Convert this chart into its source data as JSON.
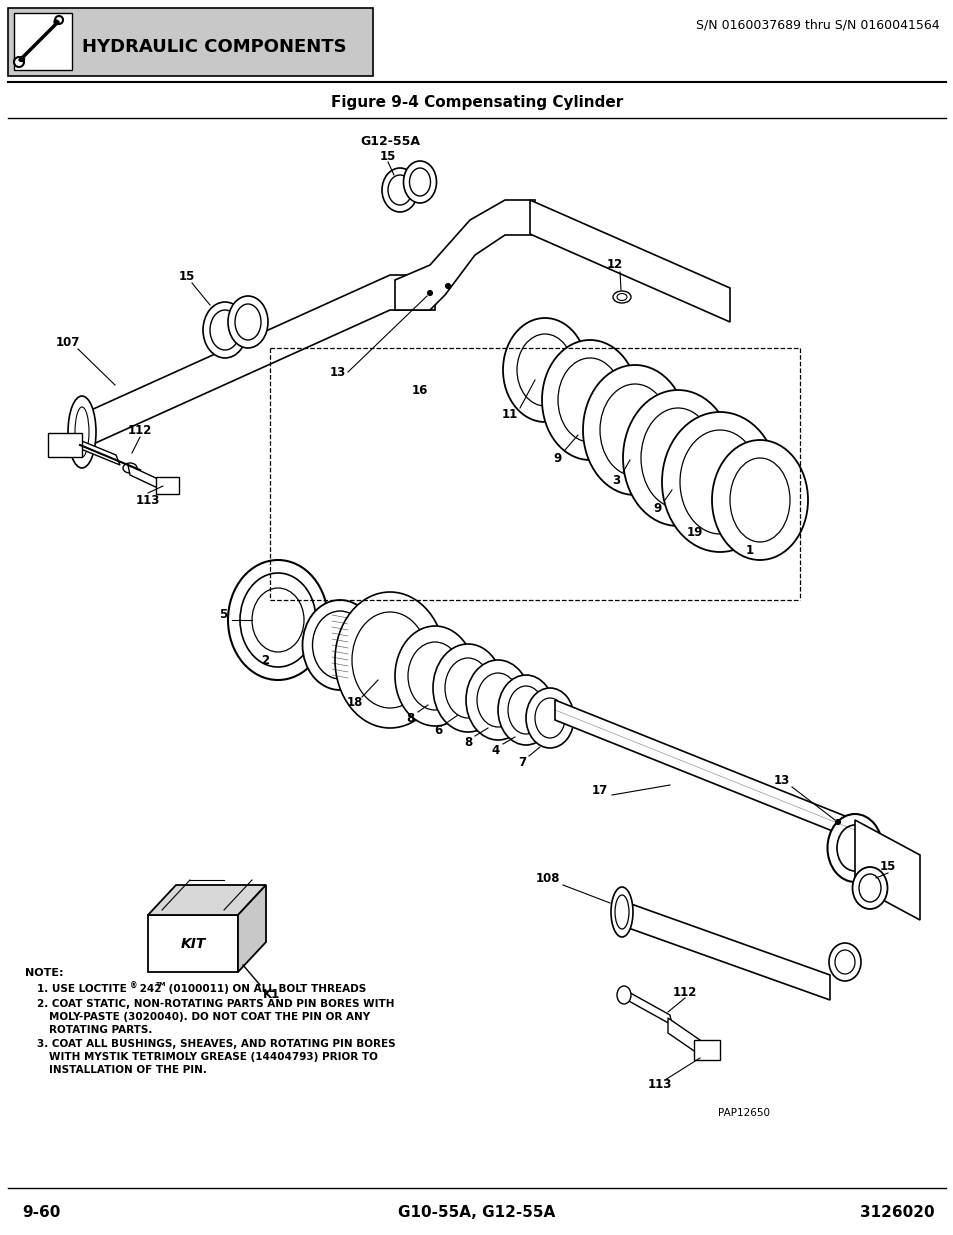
{
  "title_header": "HYDRAULIC COMPONENTS",
  "serial_number": "S/N 0160037689 thru S/N 0160041564",
  "figure_title": "Figure 9-4 Compensating Cylinder",
  "model_top": "G12-55A",
  "page_number": "9-60",
  "model_bottom": "G10-55A, G12-55A",
  "part_number": "3126020",
  "watermark": "PAP12650",
  "header_bg": "#c8c8c8",
  "bg_color": "#ffffff",
  "text_color": "#000000"
}
